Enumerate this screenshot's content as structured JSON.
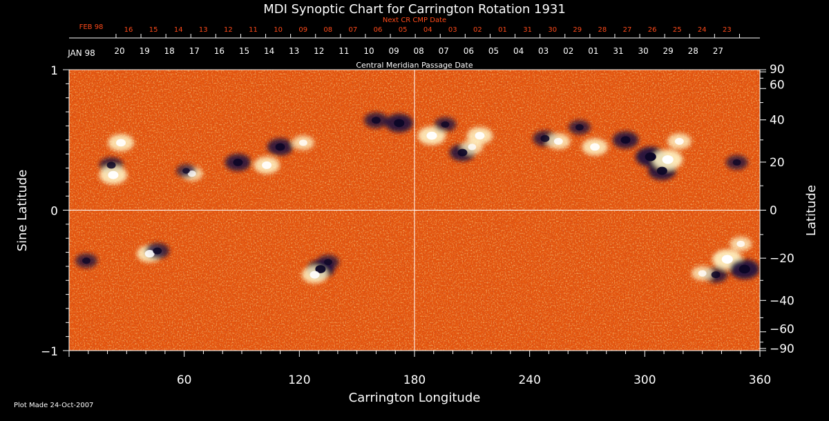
{
  "chart_data": {
    "type": "heatmap",
    "title": "MDI Synoptic Chart for Carrington Rotation 1931",
    "xlabel": "Carrington Longitude",
    "ylabel_left": "Sine Latitude",
    "ylabel_right": "Latitude",
    "top_axis_label": "Central Meridian Passage Date",
    "next_axis_label": "Next CR CMP Date",
    "xlim": [
      0,
      360
    ],
    "ylim": [
      -1,
      1
    ],
    "x_ticks": [
      60,
      120,
      180,
      240,
      300,
      360
    ],
    "y_ticks_left": [
      {
        "value": 1,
        "label": "1"
      },
      {
        "value": 0,
        "label": "0"
      },
      {
        "value": -1,
        "label": "−1"
      }
    ],
    "y_ticks_right": [
      90,
      60,
      40,
      20,
      0,
      -20,
      -40,
      -60,
      -90
    ],
    "cmp_month_label": "JAN 98",
    "cmp_dates": [
      "20",
      "19",
      "18",
      "17",
      "16",
      "15",
      "14",
      "13",
      "12",
      "11",
      "10",
      "09",
      "08",
      "07",
      "06",
      "05",
      "04",
      "03",
      "02",
      "01",
      "31",
      "30",
      "29",
      "28",
      "27"
    ],
    "next_month_label": "FEB 98",
    "next_dates": [
      "16",
      "15",
      "14",
      "13",
      "12",
      "11",
      "10",
      "09",
      "08",
      "07",
      "06",
      "05",
      "04",
      "03",
      "02",
      "01",
      "31",
      "30",
      "29",
      "28",
      "27",
      "26",
      "25",
      "24",
      "23"
    ],
    "footer": "Plot Made 24-Oct-2007",
    "colors": {
      "background": "#000000",
      "map_base": "#e65a10",
      "positive_flux": "#fff6c8",
      "negative_flux": "#1a1040",
      "axis": "#ffffff",
      "next_axis": "#ff4a1a"
    },
    "features": [
      {
        "lon": 27,
        "sinlat": 0.48,
        "polarity": "positive",
        "strength": 0.8
      },
      {
        "lon": 22,
        "sinlat": 0.32,
        "polarity": "negative",
        "strength": 0.7
      },
      {
        "lon": 23,
        "sinlat": 0.25,
        "polarity": "positive",
        "strength": 0.9
      },
      {
        "lon": 64,
        "sinlat": 0.26,
        "polarity": "positive",
        "strength": 0.6
      },
      {
        "lon": 61,
        "sinlat": 0.28,
        "polarity": "negative",
        "strength": 0.5
      },
      {
        "lon": 88,
        "sinlat": 0.34,
        "polarity": "negative",
        "strength": 0.8
      },
      {
        "lon": 103,
        "sinlat": 0.32,
        "polarity": "positive",
        "strength": 0.8
      },
      {
        "lon": 110,
        "sinlat": 0.45,
        "polarity": "negative",
        "strength": 0.8
      },
      {
        "lon": 122,
        "sinlat": 0.48,
        "polarity": "positive",
        "strength": 0.6
      },
      {
        "lon": 172,
        "sinlat": 0.62,
        "polarity": "negative",
        "strength": 0.9
      },
      {
        "lon": 160,
        "sinlat": 0.64,
        "polarity": "negative",
        "strength": 0.7
      },
      {
        "lon": 189,
        "sinlat": 0.53,
        "polarity": "positive",
        "strength": 0.9
      },
      {
        "lon": 196,
        "sinlat": 0.61,
        "polarity": "negative",
        "strength": 0.6
      },
      {
        "lon": 205,
        "sinlat": 0.41,
        "polarity": "negative",
        "strength": 0.8
      },
      {
        "lon": 214,
        "sinlat": 0.53,
        "polarity": "positive",
        "strength": 0.8
      },
      {
        "lon": 210,
        "sinlat": 0.45,
        "polarity": "positive",
        "strength": 0.6
      },
      {
        "lon": 248,
        "sinlat": 0.51,
        "polarity": "negative",
        "strength": 0.7
      },
      {
        "lon": 255,
        "sinlat": 0.49,
        "polarity": "positive",
        "strength": 0.7
      },
      {
        "lon": 266,
        "sinlat": 0.59,
        "polarity": "negative",
        "strength": 0.6
      },
      {
        "lon": 274,
        "sinlat": 0.45,
        "polarity": "positive",
        "strength": 0.8
      },
      {
        "lon": 290,
        "sinlat": 0.5,
        "polarity": "negative",
        "strength": 0.8
      },
      {
        "lon": 303,
        "sinlat": 0.38,
        "polarity": "negative",
        "strength": 1.0
      },
      {
        "lon": 309,
        "sinlat": 0.28,
        "polarity": "negative",
        "strength": 0.9
      },
      {
        "lon": 312,
        "sinlat": 0.36,
        "polarity": "positive",
        "strength": 1.0
      },
      {
        "lon": 318,
        "sinlat": 0.49,
        "polarity": "positive",
        "strength": 0.7
      },
      {
        "lon": 348,
        "sinlat": 0.34,
        "polarity": "negative",
        "strength": 0.6
      },
      {
        "lon": 9,
        "sinlat": -0.36,
        "polarity": "negative",
        "strength": 0.6
      },
      {
        "lon": 42,
        "sinlat": -0.31,
        "polarity": "positive",
        "strength": 0.8
      },
      {
        "lon": 46,
        "sinlat": -0.29,
        "polarity": "negative",
        "strength": 0.7
      },
      {
        "lon": 131,
        "sinlat": -0.42,
        "polarity": "negative",
        "strength": 0.9
      },
      {
        "lon": 128,
        "sinlat": -0.46,
        "polarity": "positive",
        "strength": 0.8
      },
      {
        "lon": 135,
        "sinlat": -0.37,
        "polarity": "negative",
        "strength": 0.6
      },
      {
        "lon": 343,
        "sinlat": -0.35,
        "polarity": "positive",
        "strength": 1.0
      },
      {
        "lon": 352,
        "sinlat": -0.42,
        "polarity": "negative",
        "strength": 1.0
      },
      {
        "lon": 337,
        "sinlat": -0.46,
        "polarity": "negative",
        "strength": 0.7
      },
      {
        "lon": 330,
        "sinlat": -0.45,
        "polarity": "positive",
        "strength": 0.6
      },
      {
        "lon": 350,
        "sinlat": -0.24,
        "polarity": "positive",
        "strength": 0.6
      }
    ]
  }
}
